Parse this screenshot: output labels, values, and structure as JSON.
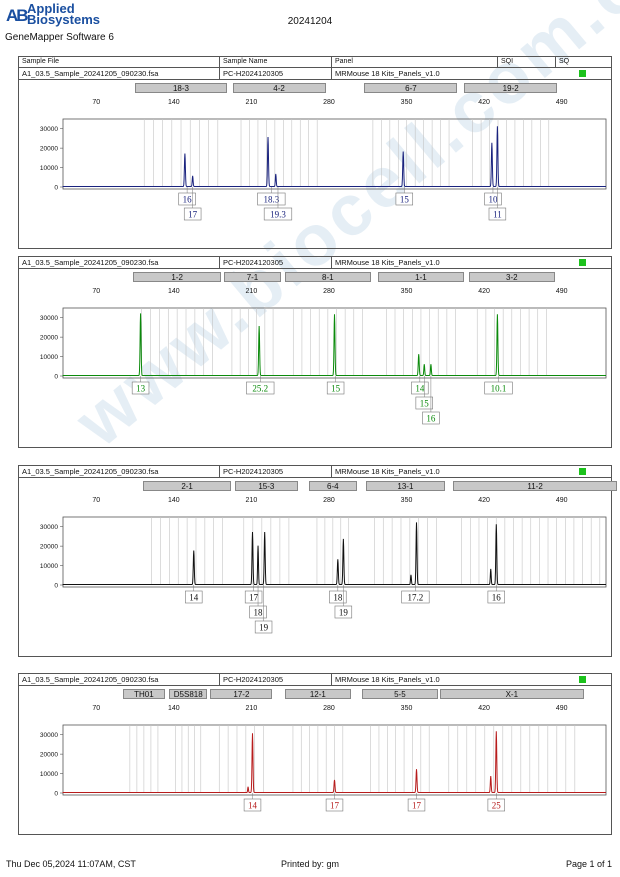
{
  "header": {
    "logo_mark": "AB",
    "logo_line1": "Applied",
    "logo_line2": "Biosystems",
    "software": "GeneMapper Software 6",
    "report_title": "20241204"
  },
  "columns": [
    "Sample File",
    "Sample Name",
    "Panel",
    "SQI",
    "SQ"
  ],
  "watermark": "www.biocell.com.cn",
  "axis_ticks": [
    70,
    140,
    210,
    280,
    350,
    420,
    490
  ],
  "y_ticks": [
    0,
    10000,
    20000,
    30000
  ],
  "panels": [
    {
      "sample_file": "A1_03.5_Sample_20241205_090230.fsa",
      "sample_name": "PC-H2024120305",
      "panel_name": "MRMouse 18 Kits_Panels_v1.0",
      "color": "#1a237e",
      "marker_color": "#1a237e",
      "markers": [
        {
          "label": "18-3",
          "start": 105,
          "end": 188
        },
        {
          "label": "4-2",
          "start": 193,
          "end": 277
        },
        {
          "label": "6-7",
          "start": 312,
          "end": 396
        },
        {
          "label": "19-2",
          "start": 402,
          "end": 486
        }
      ],
      "peaks": [
        {
          "x": 150,
          "h": 17000,
          "w": 0.9
        },
        {
          "x": 157,
          "h": 5500,
          "w": 0.8
        },
        {
          "x": 225,
          "h": 25500,
          "w": 0.9
        },
        {
          "x": 232,
          "h": 6500,
          "w": 0.8
        },
        {
          "x": 347,
          "h": 18000,
          "w": 0.9
        },
        {
          "x": 427,
          "h": 22500,
          "w": 0.9
        },
        {
          "x": 432,
          "h": 31000,
          "w": 0.9
        }
      ],
      "alleles": [
        {
          "label": "16",
          "x": 152,
          "row": 0
        },
        {
          "label": "17",
          "x": 157,
          "row": 1
        },
        {
          "label": "18.3",
          "x": 228,
          "row": 0
        },
        {
          "label": "19.3",
          "x": 234,
          "row": 1
        },
        {
          "label": "15",
          "x": 348,
          "row": 0
        },
        {
          "label": "10",
          "x": 428,
          "row": 0
        },
        {
          "label": "11",
          "x": 432,
          "row": 1
        }
      ]
    },
    {
      "sample_file": "A1_03.5_Sample_20241205_090230.fsa",
      "sample_name": "PC-H2024120305",
      "panel_name": "MRMouse 18 Kits_Panels_v1.0",
      "color": "#0b8a0b",
      "marker_color": "#0b8a0b",
      "markers": [
        {
          "label": "1-2",
          "start": 103,
          "end": 183
        },
        {
          "label": "7-1",
          "start": 185,
          "end": 237
        },
        {
          "label": "8-1",
          "start": 240,
          "end": 318
        },
        {
          "label": "1-1",
          "start": 324,
          "end": 402
        },
        {
          "label": "3-2",
          "start": 406,
          "end": 484
        }
      ],
      "peaks": [
        {
          "x": 110,
          "h": 32000,
          "w": 0.9
        },
        {
          "x": 217,
          "h": 25500,
          "w": 0.9
        },
        {
          "x": 285,
          "h": 31500,
          "w": 0.9
        },
        {
          "x": 361,
          "h": 11000,
          "w": 0.9
        },
        {
          "x": 366,
          "h": 5800,
          "w": 0.8
        },
        {
          "x": 372,
          "h": 5800,
          "w": 0.8
        },
        {
          "x": 432,
          "h": 31500,
          "w": 0.9
        }
      ],
      "alleles": [
        {
          "label": "13",
          "x": 110,
          "row": 0
        },
        {
          "label": "25.2",
          "x": 218,
          "row": 0
        },
        {
          "label": "15",
          "x": 286,
          "row": 0
        },
        {
          "label": "14",
          "x": 362,
          "row": 0
        },
        {
          "label": "15",
          "x": 366,
          "row": 1
        },
        {
          "label": "16",
          "x": 372,
          "row": 2
        },
        {
          "label": "10.1",
          "x": 433,
          "row": 0
        }
      ]
    },
    {
      "sample_file": "A1_03.5_Sample_20241205_090230.fsa",
      "sample_name": "PC-H2024120305",
      "panel_name": "MRMouse 18 Kits_Panels_v1.0",
      "color": "#111111",
      "marker_color": "#111111",
      "markers": [
        {
          "label": "2-1",
          "start": 112,
          "end": 192
        },
        {
          "label": "15-3",
          "start": 195,
          "end": 252
        },
        {
          "label": "6-4",
          "start": 262,
          "end": 305
        },
        {
          "label": "13-1",
          "start": 313,
          "end": 385
        },
        {
          "label": "11-2",
          "start": 392,
          "end": 540
        }
      ],
      "peaks": [
        {
          "x": 158,
          "h": 17500,
          "w": 0.9
        },
        {
          "x": 211,
          "h": 27000,
          "w": 0.9
        },
        {
          "x": 216,
          "h": 20000,
          "w": 0.8
        },
        {
          "x": 222,
          "h": 27000,
          "w": 0.9
        },
        {
          "x": 288,
          "h": 13000,
          "w": 0.9
        },
        {
          "x": 293,
          "h": 23500,
          "w": 0.9
        },
        {
          "x": 354,
          "h": 5000,
          "w": 0.8
        },
        {
          "x": 359,
          "h": 32000,
          "w": 0.9
        },
        {
          "x": 426,
          "h": 8000,
          "w": 0.8
        },
        {
          "x": 431,
          "h": 31000,
          "w": 0.9
        }
      ],
      "alleles": [
        {
          "label": "14",
          "x": 158,
          "row": 0
        },
        {
          "label": "17",
          "x": 212,
          "row": 0
        },
        {
          "label": "18",
          "x": 216,
          "row": 1
        },
        {
          "label": "19",
          "x": 221,
          "row": 2
        },
        {
          "label": "18",
          "x": 288,
          "row": 0
        },
        {
          "label": "19",
          "x": 293,
          "row": 1
        },
        {
          "label": "17.2",
          "x": 358,
          "row": 0
        },
        {
          "label": "16",
          "x": 431,
          "row": 0
        }
      ]
    },
    {
      "sample_file": "A1_03.5_Sample_20241205_090230.fsa",
      "sample_name": "PC-H2024120305",
      "panel_name": "MRMouse 18 Kits_Panels_v1.0",
      "color": "#b71c1c",
      "marker_color": "#b71c1c",
      "markers": [
        {
          "label": "TH01",
          "start": 94,
          "end": 132
        },
        {
          "label": "D5S818",
          "start": 136,
          "end": 170
        },
        {
          "label": "17-2",
          "start": 173,
          "end": 229
        },
        {
          "label": "12-1",
          "start": 240,
          "end": 300
        },
        {
          "label": "5-5",
          "start": 310,
          "end": 378
        },
        {
          "label": "X-1",
          "start": 380,
          "end": 510
        }
      ],
      "peaks": [
        {
          "x": 207,
          "h": 3000,
          "w": 0.7
        },
        {
          "x": 211,
          "h": 30500,
          "w": 0.9
        },
        {
          "x": 285,
          "h": 6500,
          "w": 0.9
        },
        {
          "x": 359,
          "h": 12000,
          "w": 0.9
        },
        {
          "x": 426,
          "h": 8500,
          "w": 0.8
        },
        {
          "x": 431,
          "h": 31500,
          "w": 0.9
        }
      ],
      "alleles": [
        {
          "label": "14",
          "x": 211,
          "row": 0
        },
        {
          "label": "17",
          "x": 285,
          "row": 0
        },
        {
          "label": "17",
          "x": 359,
          "row": 0
        },
        {
          "label": "25",
          "x": 431,
          "row": 0
        }
      ]
    }
  ],
  "footer": {
    "date": "Thu Dec 05,2024 11:07AM, CST",
    "printed_by": "Printed by: gm",
    "page": "Page 1 of 1"
  }
}
